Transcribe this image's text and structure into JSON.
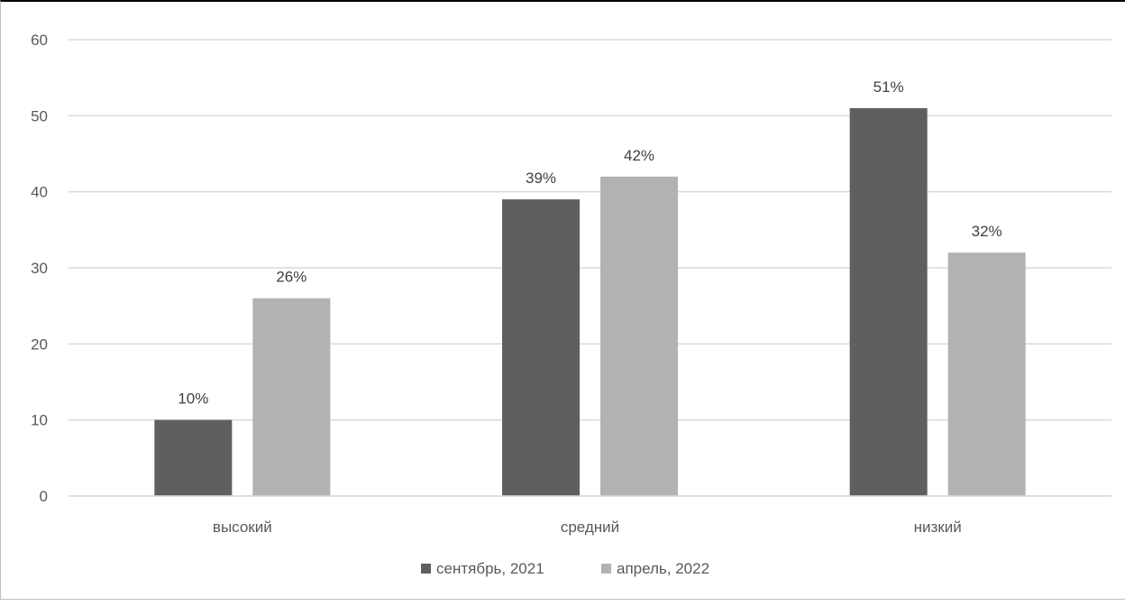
{
  "chart_data": {
    "type": "bar",
    "categories": [
      "высокий",
      "средний",
      "низкий"
    ],
    "series": [
      {
        "name": "сентябрь, 2021",
        "values": [
          10,
          39,
          51
        ],
        "labels": [
          "10%",
          "39%",
          "51%"
        ],
        "color": "#5f5f5f"
      },
      {
        "name": "апрель, 2022",
        "values": [
          26,
          42,
          32
        ],
        "labels": [
          "26%",
          "42%",
          "32%"
        ],
        "color": "#b2b2b2"
      }
    ],
    "yticks": [
      "0",
      "10",
      "20",
      "30",
      "40",
      "50",
      "60"
    ],
    "ylim": [
      0,
      60
    ],
    "grid": true,
    "legend": "bottom-center"
  }
}
